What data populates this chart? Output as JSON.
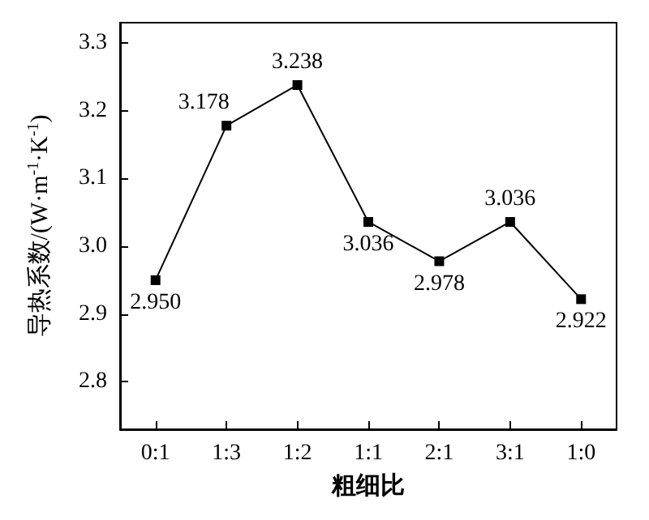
{
  "chart_data": {
    "type": "line",
    "xlabel": "粗细比",
    "ylabel": "导热系数/(W·m$^{-1}$·K$^{-1}$)",
    "categories": [
      "0:1",
      "1:3",
      "1:2",
      "1:1",
      "2:1",
      "3:1",
      "1:0"
    ],
    "series": [
      {
        "color": "#000000",
        "values": [
          2.95,
          3.178,
          3.238,
          3.036,
          2.978,
          3.036,
          2.922
        ],
        "value_labels": [
          "2.950",
          "3.178",
          "3.238",
          "3.036",
          "2.978",
          "3.036",
          "2.922"
        ]
      }
    ],
    "ylim": [
      2.73,
      3.33
    ],
    "yticks": [
      2.8,
      2.9,
      {
        "value": 3.0,
        "label": "3.0"
      },
      3.1,
      3.2,
      3.3
    ],
    "grid": false,
    "marker": "square",
    "line_style": "solid"
  }
}
